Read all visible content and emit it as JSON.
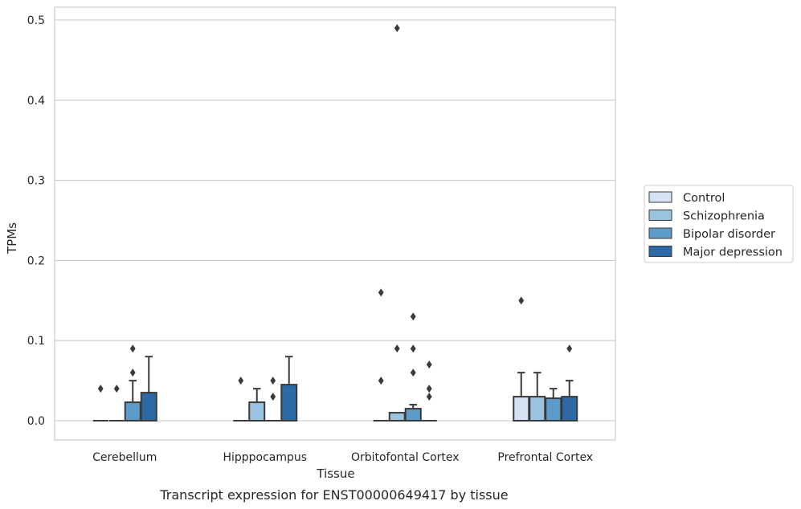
{
  "chart_data": {
    "type": "box",
    "caption": "Transcript expression for ENST00000649417 by tissue",
    "xlabel": "Tissue",
    "ylabel": "TPMs",
    "ylim": [
      -0.024,
      0.516
    ],
    "yticks": [
      "0.0",
      "0.1",
      "0.2",
      "0.3",
      "0.4",
      "0.5"
    ],
    "ytick_values": [
      0.0,
      0.1,
      0.2,
      0.3,
      0.4,
      0.5
    ],
    "grid": true,
    "legend_position": "right",
    "categories": [
      "Cerebellum",
      "Hipppocampus",
      "Orbitofontal Cortex",
      "Prefrontal Cortex"
    ],
    "series": [
      {
        "name": "Control",
        "color": "#d4e2f1",
        "boxes": [
          {
            "q1": 0,
            "median": 0,
            "q3": 0,
            "whisker_low": 0,
            "whisker_high": 0,
            "outliers": [
              0.04
            ]
          },
          {
            "q1": 0,
            "median": 0,
            "q3": 0,
            "whisker_low": 0,
            "whisker_high": 0,
            "outliers": [
              0.05
            ]
          },
          {
            "q1": 0,
            "median": 0,
            "q3": 0,
            "whisker_low": 0,
            "whisker_high": 0,
            "outliers": [
              0.16,
              0.05
            ]
          },
          {
            "q1": 0,
            "median": 0,
            "q3": 0.03,
            "whisker_low": 0,
            "whisker_high": 0.06,
            "outliers": [
              0.15
            ]
          }
        ]
      },
      {
        "name": "Schizophrenia",
        "color": "#9ac3df",
        "boxes": [
          {
            "q1": 0,
            "median": 0,
            "q3": 0,
            "whisker_low": 0,
            "whisker_high": 0,
            "outliers": [
              0.04
            ]
          },
          {
            "q1": 0,
            "median": 0,
            "q3": 0.023,
            "whisker_low": 0,
            "whisker_high": 0.04,
            "outliers": []
          },
          {
            "q1": 0,
            "median": 0,
            "q3": 0.01,
            "whisker_low": 0,
            "whisker_high": 0.01,
            "outliers": [
              0.49,
              0.09
            ]
          },
          {
            "q1": 0,
            "median": 0,
            "q3": 0.03,
            "whisker_low": 0,
            "whisker_high": 0.06,
            "outliers": []
          }
        ]
      },
      {
        "name": "Bipolar disorder",
        "color": "#5d9cc9",
        "boxes": [
          {
            "q1": 0,
            "median": 0,
            "q3": 0.023,
            "whisker_low": 0,
            "whisker_high": 0.05,
            "outliers": [
              0.09,
              0.06
            ]
          },
          {
            "q1": 0,
            "median": 0,
            "q3": 0,
            "whisker_low": 0,
            "whisker_high": 0,
            "outliers": [
              0.05,
              0.03
            ]
          },
          {
            "q1": 0,
            "median": 0,
            "q3": 0.015,
            "whisker_low": 0,
            "whisker_high": 0.02,
            "outliers": [
              0.13,
              0.09,
              0.06
            ]
          },
          {
            "q1": 0,
            "median": 0,
            "q3": 0.028,
            "whisker_low": 0,
            "whisker_high": 0.04,
            "outliers": []
          }
        ]
      },
      {
        "name": "Major depression",
        "color": "#2c69a5",
        "boxes": [
          {
            "q1": 0,
            "median": 0,
            "q3": 0.035,
            "whisker_low": 0,
            "whisker_high": 0.08,
            "outliers": []
          },
          {
            "q1": 0,
            "median": 0,
            "q3": 0.045,
            "whisker_low": 0,
            "whisker_high": 0.08,
            "outliers": []
          },
          {
            "q1": 0,
            "median": 0,
            "q3": 0,
            "whisker_low": 0,
            "whisker_high": 0,
            "outliers": [
              0.07,
              0.04,
              0.03
            ]
          },
          {
            "q1": 0,
            "median": 0,
            "q3": 0.03,
            "whisker_low": 0,
            "whisker_high": 0.05,
            "outliers": [
              0.09
            ]
          }
        ]
      }
    ]
  }
}
